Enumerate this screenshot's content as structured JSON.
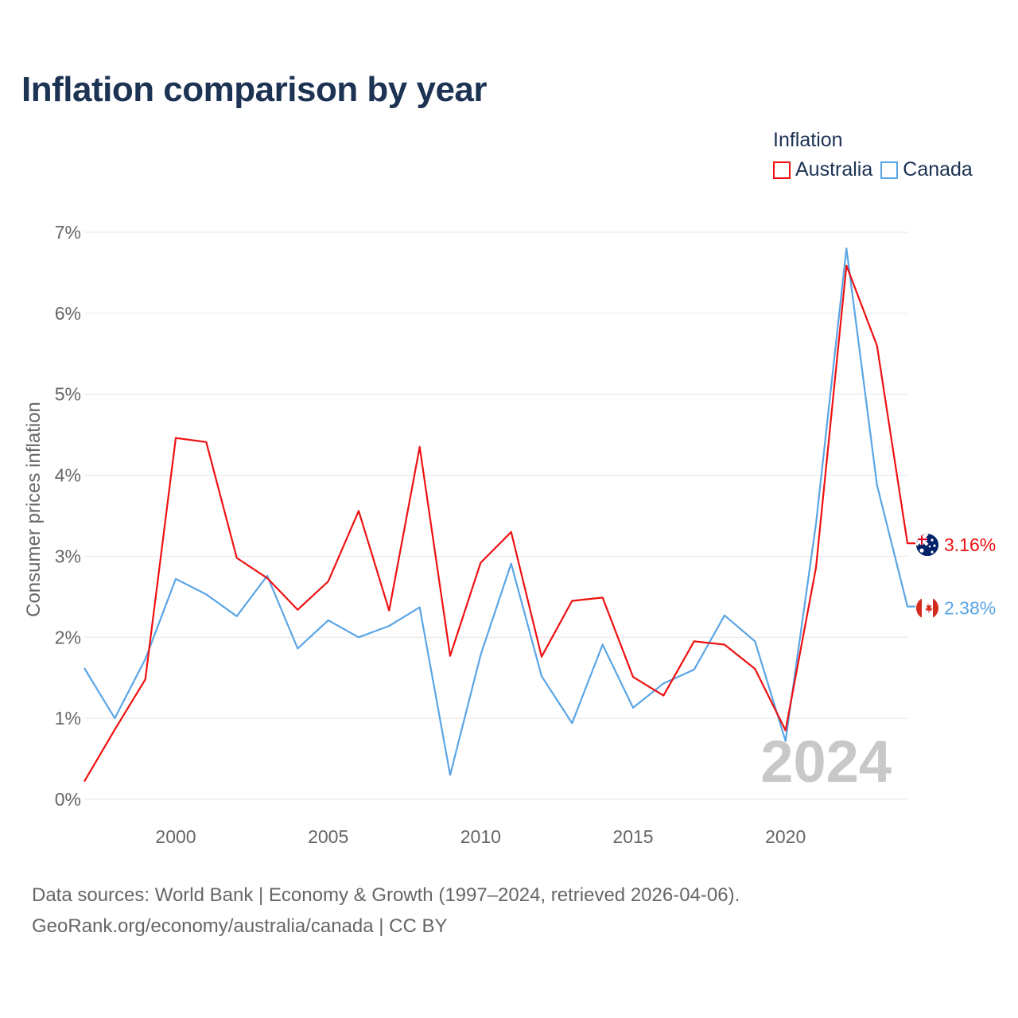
{
  "title": "Inflation comparison by year",
  "legend": {
    "title": "Inflation",
    "items": [
      {
        "label": "Australia",
        "color": "#ee1111"
      },
      {
        "label": "Canada",
        "color": "#5aa5e6"
      }
    ]
  },
  "year_watermark": "2024",
  "source": {
    "line1": "Data sources: World Bank | Economy & Growth (1997–2024, retrieved 2026-04-06).",
    "line2": "GeoRank.org/economy/australia/canada | CC BY"
  },
  "chart_data": {
    "type": "line",
    "title": "Inflation comparison by year",
    "xlabel": "",
    "ylabel": "Consumer prices inflation",
    "xlim": [
      1997,
      2024
    ],
    "ylim": [
      0,
      7
    ],
    "x_ticks": [
      2000,
      2005,
      2010,
      2015,
      2020
    ],
    "x_tick_labels": [
      "2000",
      "2005",
      "2010",
      "2015",
      "2020"
    ],
    "y_ticks": [
      0,
      1,
      2,
      3,
      4,
      5,
      6,
      7
    ],
    "y_tick_labels": [
      "0%",
      "1%",
      "2%",
      "3%",
      "4%",
      "5%",
      "6%",
      "7%"
    ],
    "grid": true,
    "x": [
      1997,
      1998,
      1999,
      2000,
      2001,
      2002,
      2003,
      2004,
      2005,
      2006,
      2007,
      2008,
      2009,
      2010,
      2011,
      2012,
      2013,
      2014,
      2015,
      2016,
      2017,
      2018,
      2019,
      2020,
      2021,
      2022,
      2023,
      2024
    ],
    "series": [
      {
        "name": "Australia",
        "color": "#ee1111",
        "flag_icon": "australia-flag-icon",
        "end_label": "3.16%",
        "values": [
          0.22,
          0.86,
          1.48,
          4.46,
          4.41,
          2.98,
          2.73,
          2.34,
          2.69,
          3.56,
          2.33,
          4.35,
          1.77,
          2.92,
          3.3,
          1.76,
          2.45,
          2.49,
          1.51,
          1.28,
          1.95,
          1.91,
          1.61,
          0.85,
          2.86,
          6.59,
          5.6,
          3.16
        ]
      },
      {
        "name": "Canada",
        "color": "#5aa5e6",
        "flag_icon": "canada-flag-icon",
        "end_label": "2.38%",
        "values": [
          1.62,
          1.0,
          1.73,
          2.72,
          2.53,
          2.26,
          2.76,
          1.86,
          2.21,
          2.0,
          2.14,
          2.37,
          0.3,
          1.78,
          2.91,
          1.52,
          0.94,
          1.91,
          1.13,
          1.43,
          1.6,
          2.27,
          1.95,
          0.72,
          3.4,
          6.8,
          3.88,
          2.38
        ]
      }
    ]
  }
}
